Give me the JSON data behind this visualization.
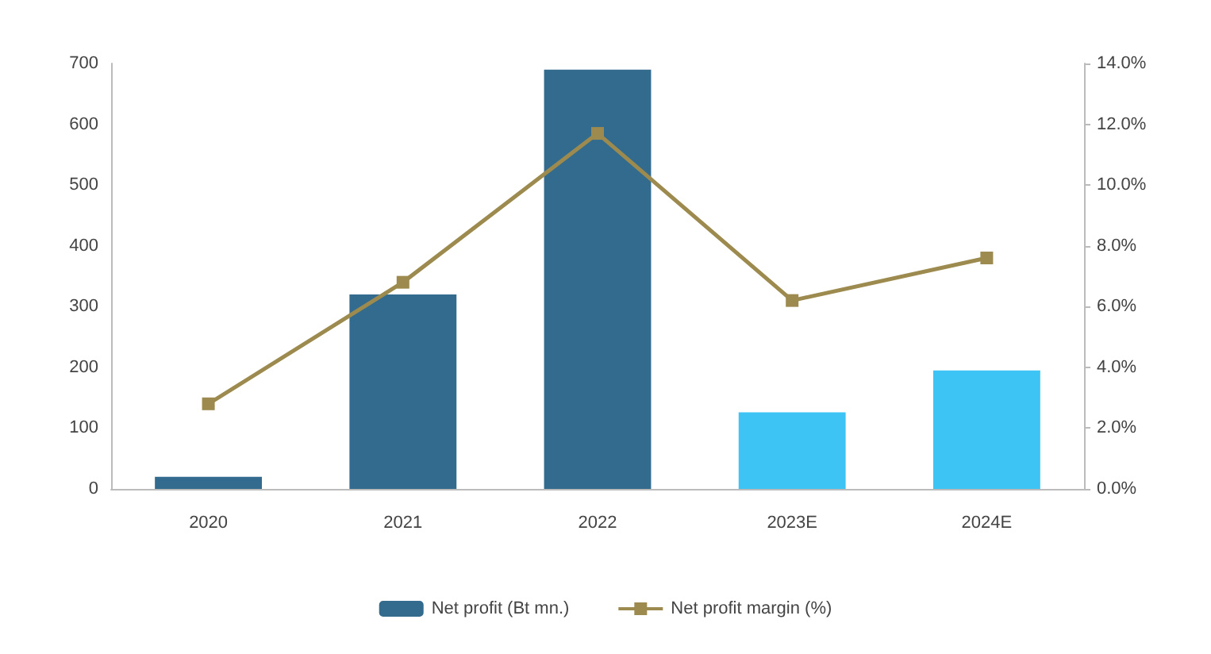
{
  "chart_data": {
    "type": "bar",
    "categories": [
      "2020",
      "2021",
      "2022",
      "2023E",
      "2024E"
    ],
    "series": [
      {
        "name": "Net profit (Bt mn.)",
        "color": "#336b8f",
        "colors": [
          "#336b8f",
          "#336b8f",
          "#336b8f",
          "#3ec3f5",
          "#3ec3f5"
        ],
        "values": [
          20,
          320,
          690,
          126,
          195
        ]
      },
      {
        "name": "Net profit margin (%)",
        "type": "line",
        "axis": "y2",
        "color": "#9c8a4e",
        "values": [
          2.8,
          6.8,
          11.7,
          6.2,
          7.6
        ]
      }
    ],
    "ylim": [
      0,
      700
    ],
    "yticks": [
      0,
      100,
      200,
      300,
      400,
      500,
      600,
      700
    ],
    "y2lim": [
      0,
      14
    ],
    "y2ticks": [
      {
        "value": 0,
        "label": "0.0%"
      },
      {
        "value": 2,
        "label": "2.0%"
      },
      {
        "value": 4,
        "label": "4.0%"
      },
      {
        "value": 6,
        "label": "6.0%"
      },
      {
        "value": 8,
        "label": "8.0%"
      },
      {
        "value": 10,
        "label": "10.0%"
      },
      {
        "value": 12,
        "label": "12.0%"
      },
      {
        "value": 14,
        "label": "14.0%"
      }
    ],
    "grid": false,
    "legend": "bottom",
    "marker": "square",
    "line_style": "solid"
  }
}
